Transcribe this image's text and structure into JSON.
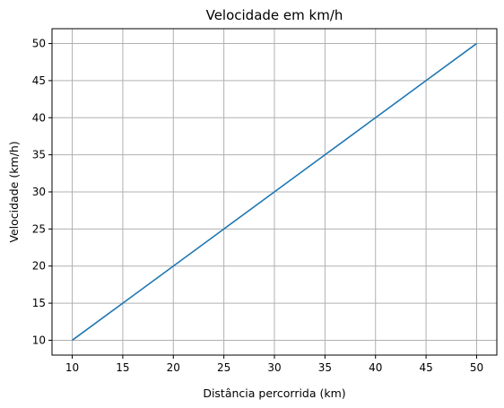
{
  "chart_data": {
    "type": "line",
    "title": "Velocidade em km/h",
    "xlabel": "Distância percorrida (km)",
    "ylabel": "Velocidade (km/h)",
    "x": [
      10,
      15,
      20,
      25,
      30,
      35,
      40,
      45,
      50
    ],
    "series": [
      {
        "values": [
          10,
          15,
          20,
          25,
          30,
          35,
          40,
          45,
          50
        ],
        "color": "#1f77b4"
      }
    ],
    "xlim": [
      8,
      52
    ],
    "ylim": [
      8,
      52
    ],
    "xticks": [
      10,
      15,
      20,
      25,
      30,
      35,
      40,
      45,
      50
    ],
    "yticks": [
      10,
      15,
      20,
      25,
      30,
      35,
      40,
      45,
      50
    ],
    "grid": true
  }
}
